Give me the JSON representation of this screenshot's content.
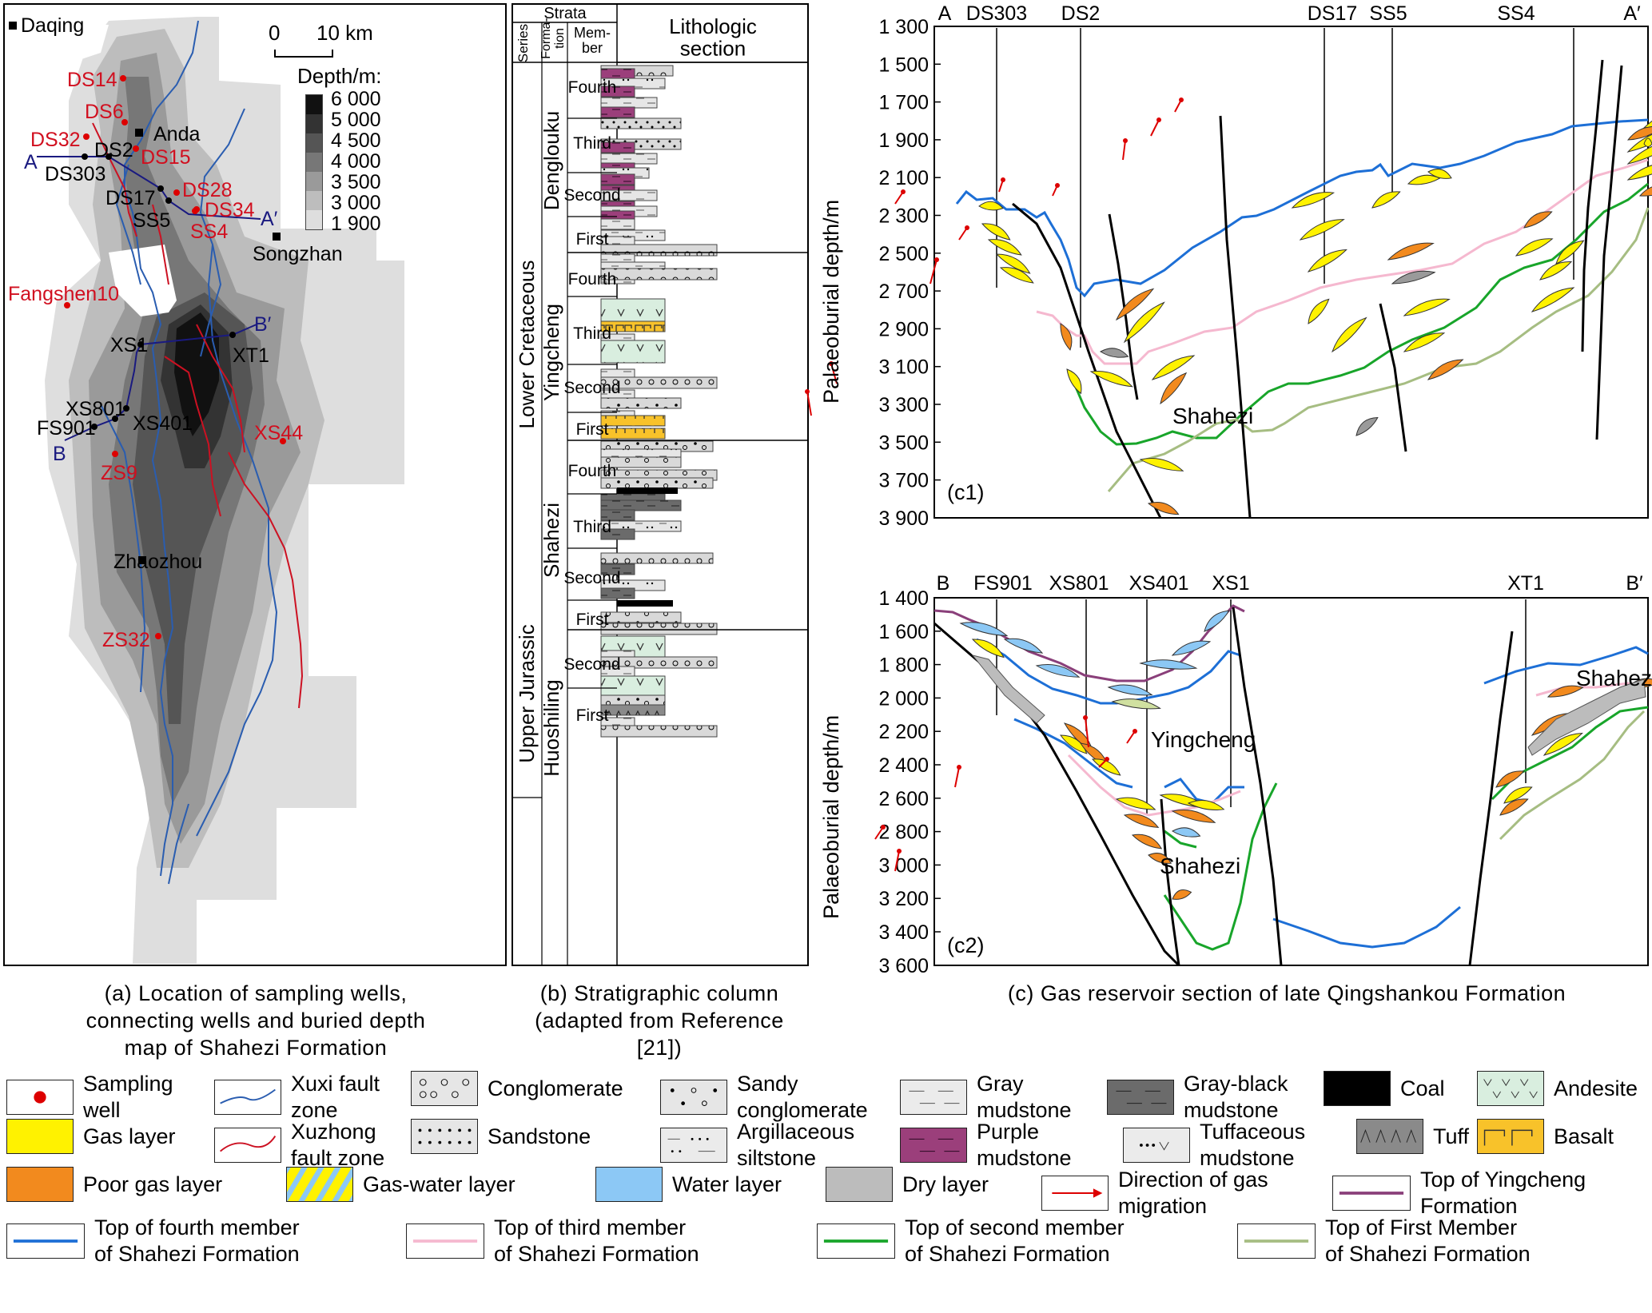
{
  "panel_a": {
    "cities": [
      "Daqing",
      "Anda",
      "Songzhan",
      "Zhaozhou"
    ],
    "sampling_wells": [
      "DS14",
      "DS6",
      "DS32",
      "DS15",
      "DS28",
      "DS34",
      "SS4",
      "Fangshen10",
      "XS44",
      "ZS9",
      "ZS32"
    ],
    "connecting_wells": [
      "DS2",
      "DS303",
      "DS17",
      "SS5",
      "XS1",
      "XT1",
      "XS801",
      "FS901",
      "XS401"
    ],
    "section_ends": {
      "a": "A",
      "a_prime": "A′",
      "b": "B",
      "b_prime": "B′"
    },
    "scale": {
      "zero": "0",
      "ten": "10 km"
    },
    "depth_legend_title": "Depth/m:",
    "depth_legend_values": [
      "6 000",
      "5 000",
      "4 500",
      "4 000",
      "3 500",
      "3 000",
      "1 900"
    ],
    "depth_colors": [
      "#111111",
      "#333333",
      "#555555",
      "#777777",
      "#9a9a9a",
      "#bdbdbd",
      "#dedede"
    ],
    "caption": "(a) Location of sampling wells,\nconnecting wells and buried depth\nmap of Shahezi Formation"
  },
  "panel_b": {
    "header_strata": "Strata",
    "header_series": "Series",
    "header_formation": "Forma-\ntion",
    "header_member": "Mem-\nber",
    "header_lithologic": "Lithologic\nsection",
    "series": [
      "Lower Cretaceous",
      "Upper Jurassic"
    ],
    "formations": [
      "Denglouku",
      "Yingcheng",
      "Shahezi",
      "Huoshiling"
    ],
    "members": [
      "Fourth",
      "Third",
      "Second",
      "First",
      "Fourth",
      "Third",
      "Second",
      "First",
      "Fourth",
      "Third",
      "Second",
      "First",
      "Second",
      "First"
    ],
    "caption": "(b) Stratigraphic column\n(adapted from Reference\n[21])"
  },
  "panel_c1": {
    "label": "(c1)",
    "ylabel": "Palaeoburial depth/m",
    "yticks": [
      "1 300",
      "1 500",
      "1 700",
      "1 900",
      "2 100",
      "2 300",
      "2 500",
      "2 700",
      "2 900",
      "3 100",
      "3 300",
      "3 500",
      "3 700",
      "3 900"
    ],
    "wells": [
      "A",
      "DS303",
      "DS2",
      "DS17",
      "SS5",
      "SS4",
      "A′"
    ],
    "annotation": "Shahezi"
  },
  "panel_c2": {
    "label": "(c2)",
    "ylabel": "Palaeoburial depth/m",
    "yticks": [
      "1 400",
      "1 600",
      "1 800",
      "2 000",
      "2 200",
      "2 400",
      "2 600",
      "2 800",
      "3 000",
      "3 200",
      "3 400",
      "3 600"
    ],
    "wells": [
      "B",
      "FS901",
      "XS801",
      "XS401",
      "XS1",
      "XT1",
      "B′"
    ],
    "annotations": [
      "Yingcheng",
      "Shahezi",
      "Shahezi"
    ]
  },
  "panel_c_caption": "(c) Gas reservoir section of late Qingshankou Formation",
  "legend": [
    {
      "label": "Sampling\nwell",
      "swatch": "sampling-well"
    },
    {
      "label": "Xuxi fault\nzone",
      "swatch": "xuxi-fault"
    },
    {
      "label": "Conglomerate",
      "swatch": "conglomerate"
    },
    {
      "label": "Sandy\nconglomerate",
      "swatch": "sandy-conglomerate"
    },
    {
      "label": "Gray\nmudstone",
      "swatch": "gray-mudstone"
    },
    {
      "label": "Gray-black\nmudstone",
      "swatch": "gray-black-mudstone"
    },
    {
      "label": "Coal",
      "swatch": "coal"
    },
    {
      "label": "Andesite",
      "swatch": "andesite"
    },
    {
      "label": "Gas layer",
      "swatch": "gas-layer"
    },
    {
      "label": "Xuzhong\nfault zone",
      "swatch": "xuzhong-fault"
    },
    {
      "label": "Sandstone",
      "swatch": "sandstone"
    },
    {
      "label": "Argillaceous\nsiltstone",
      "swatch": "argillaceous-siltstone"
    },
    {
      "label": "Purple\nmudstone",
      "swatch": "purple-mudstone"
    },
    {
      "label": "Tuffaceous\nmudstone",
      "swatch": "tuffaceous-mudstone"
    },
    {
      "label": "Tuff",
      "swatch": "tuff"
    },
    {
      "label": "Basalt",
      "swatch": "basalt"
    },
    {
      "label": "Poor gas layer",
      "swatch": "poor-gas-layer"
    },
    {
      "label": "Gas-water layer",
      "swatch": "gas-water-layer"
    },
    {
      "label": "Water layer",
      "swatch": "water-layer"
    },
    {
      "label": "Dry layer",
      "swatch": "dry-layer"
    },
    {
      "label": "Direction of gas\nmigration",
      "swatch": "migration-arrow"
    },
    {
      "label": "Top of Yingcheng\nFormation",
      "swatch": "top-yingcheng"
    },
    {
      "label": "Top of fourth member\nof Shahezi Formation",
      "swatch": "top-fourth"
    },
    {
      "label": "Top of third member\nof Shahezi Formation",
      "swatch": "top-third"
    },
    {
      "label": "Top of second member\nof Shahezi Formation",
      "swatch": "top-second"
    },
    {
      "label": "Top of First Member\nof Shahezi Formation",
      "swatch": "top-first"
    }
  ]
}
